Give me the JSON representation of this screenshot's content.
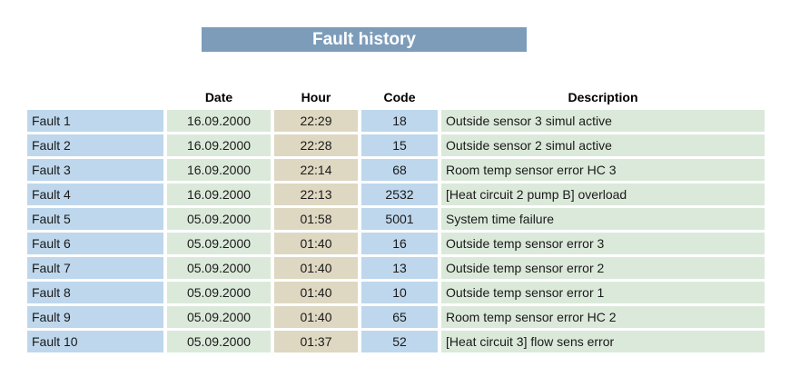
{
  "title_banner": {
    "label": "Fault history"
  },
  "colors": {
    "title_bg": "#7D9CBA",
    "title_text": "#FFFFFF",
    "label_cell": "#BED7EC",
    "date_cell": "#DBE9DA",
    "hour_cell": "#DED8C2",
    "code_cell": "#BED7EC",
    "desc_cell": "#DBE9DA",
    "text": "#1A1A1A",
    "page_bg": "#FFFFFF"
  },
  "table": {
    "column_headers": {
      "date": "Date",
      "hour": "Hour",
      "code": "Code",
      "description": "Description"
    },
    "rows": [
      {
        "label": "Fault 1",
        "date": "16.09.2000",
        "hour": "22:29",
        "code": "18",
        "description": "Outside sensor 3 simul active"
      },
      {
        "label": "Fault 2",
        "date": "16.09.2000",
        "hour": "22:28",
        "code": "15",
        "description": "Outside sensor 2 simul active"
      },
      {
        "label": "Fault 3",
        "date": "16.09.2000",
        "hour": "22:14",
        "code": "68",
        "description": "Room temp sensor error HC 3"
      },
      {
        "label": "Fault 4",
        "date": "16.09.2000",
        "hour": "22:13",
        "code": "2532",
        "description": "[Heat circuit 2 pump B] overload"
      },
      {
        "label": "Fault 5",
        "date": "05.09.2000",
        "hour": "01:58",
        "code": "5001",
        "description": "System time failure"
      },
      {
        "label": "Fault 6",
        "date": "05.09.2000",
        "hour": "01:40",
        "code": "16",
        "description": "Outside temp sensor error 3"
      },
      {
        "label": "Fault 7",
        "date": "05.09.2000",
        "hour": "01:40",
        "code": "13",
        "description": "Outside temp sensor error 2"
      },
      {
        "label": "Fault 8",
        "date": "05.09.2000",
        "hour": "01:40",
        "code": "10",
        "description": "Outside temp sensor error 1"
      },
      {
        "label": "Fault 9",
        "date": "05.09.2000",
        "hour": "01:40",
        "code": "65",
        "description": "Room temp sensor error HC 2"
      },
      {
        "label": "Fault 10",
        "date": "05.09.2000",
        "hour": "01:37",
        "code": "52",
        "description": "[Heat circuit 3] flow sens error"
      }
    ]
  }
}
